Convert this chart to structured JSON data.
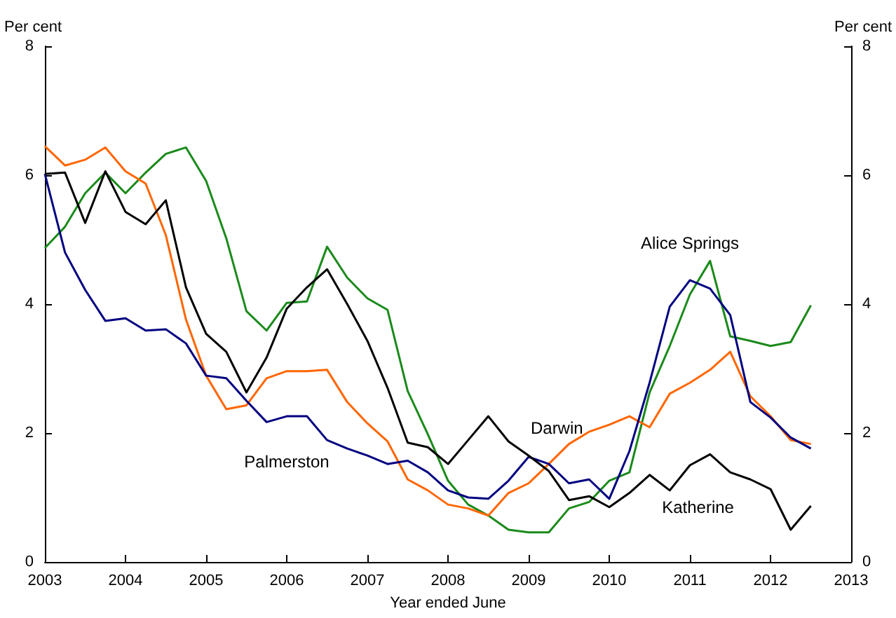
{
  "chart_data": {
    "type": "line",
    "xlabel": "Year ended June",
    "ylabel": "Per cent",
    "y2label": "Per cent",
    "x": [
      2003,
      2003.25,
      2003.5,
      2003.75,
      2004,
      2004.25,
      2004.5,
      2004.75,
      2005,
      2005.25,
      2005.5,
      2005.75,
      2006,
      2006.25,
      2006.5,
      2006.75,
      2007,
      2007.25,
      2007.5,
      2007.75,
      2008,
      2008.25,
      2008.5,
      2008.75,
      2009,
      2009.25,
      2009.5,
      2009.75,
      2010,
      2010.25,
      2010.5,
      2010.75,
      2011,
      2011.25,
      2011.5,
      2011.75,
      2012,
      2012.25,
      2012.5
    ],
    "xlim": [
      2003,
      2013
    ],
    "xticks": [
      2003,
      2004,
      2005,
      2006,
      2007,
      2008,
      2009,
      2010,
      2011,
      2012,
      2013
    ],
    "ylim": [
      0,
      8
    ],
    "yticks": [
      0,
      2,
      4,
      6,
      8
    ],
    "y2lim": [
      0,
      8
    ],
    "y2ticks": [
      0,
      2,
      4,
      6,
      8
    ],
    "grid": false,
    "legend": false,
    "marker": "none",
    "line_style": "solid",
    "series": [
      {
        "name": "Alice Springs",
        "color": "#1a8a1a",
        "values": [
          4.87,
          5.2,
          5.72,
          6.04,
          5.72,
          6.04,
          6.33,
          6.43,
          5.91,
          5.02,
          3.89,
          3.59,
          4.02,
          4.04,
          4.89,
          4.41,
          4.09,
          3.91,
          2.65,
          1.98,
          1.26,
          0.89,
          0.72,
          0.5,
          0.46,
          0.46,
          0.83,
          0.93,
          1.26,
          1.39,
          2.63,
          3.35,
          4.15,
          4.67,
          3.5,
          3.43,
          3.35,
          3.41,
          3.98
        ]
      },
      {
        "name": "Darwin",
        "color": "#ff6600",
        "values": [
          6.45,
          6.15,
          6.24,
          6.43,
          6.06,
          5.87,
          5.07,
          3.76,
          2.89,
          2.37,
          2.43,
          2.85,
          2.96,
          2.96,
          2.98,
          2.48,
          2.15,
          1.87,
          1.28,
          1.11,
          0.89,
          0.83,
          0.72,
          1.07,
          1.22,
          1.52,
          1.83,
          2.02,
          2.13,
          2.26,
          2.09,
          2.61,
          2.78,
          2.98,
          3.26,
          2.57,
          2.26,
          1.89,
          1.83
        ]
      },
      {
        "name": "Palmerston",
        "color": "#000080",
        "values": [
          6.02,
          4.8,
          4.22,
          3.74,
          3.78,
          3.59,
          3.61,
          3.39,
          2.89,
          2.85,
          2.5,
          2.17,
          2.26,
          2.26,
          1.89,
          1.76,
          1.65,
          1.52,
          1.57,
          1.39,
          1.11,
          1.0,
          0.98,
          1.26,
          1.63,
          1.52,
          1.22,
          1.28,
          0.98,
          1.72,
          2.78,
          3.96,
          4.37,
          4.24,
          3.83,
          2.48,
          2.24,
          1.93,
          1.76
        ]
      },
      {
        "name": "Katherine",
        "color": "#000000",
        "values": [
          6.02,
          6.04,
          5.26,
          6.06,
          5.43,
          5.24,
          5.61,
          4.26,
          3.54,
          3.26,
          2.63,
          3.17,
          3.93,
          4.26,
          4.54,
          4.0,
          3.43,
          2.7,
          1.85,
          1.78,
          1.52,
          1.89,
          2.26,
          1.87,
          1.65,
          1.41,
          0.96,
          1.02,
          0.85,
          1.07,
          1.35,
          1.11,
          1.5,
          1.67,
          1.39,
          1.28,
          1.13,
          0.5,
          0.87
        ]
      }
    ]
  }
}
